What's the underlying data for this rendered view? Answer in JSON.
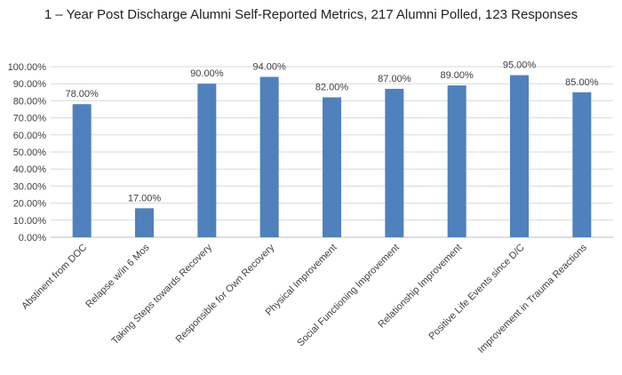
{
  "chart_data": {
    "type": "bar",
    "title": "1 – Year Post Discharge Alumni Self-Reported Metrics, 217 Alumni Polled, 123 Responses",
    "xlabel": "",
    "ylabel": "",
    "categories": [
      "Abstinent from DOC",
      "Relapse w/in 6 Mos",
      "Taking Steps towards Recovery",
      "Responsible for Own Recovery",
      "Physical Improvement",
      "Social Functioning Improvement",
      "Relationship Improvement",
      "Positive Life Events since D/C",
      "Improvement in Trauma Reactions"
    ],
    "values": [
      78,
      17,
      90,
      94,
      82,
      87,
      89,
      95,
      85
    ],
    "data_labels": [
      "78.00%",
      "17.00%",
      "90.00%",
      "94.00%",
      "82.00%",
      "87.00%",
      "89.00%",
      "95.00%",
      "85.00%"
    ],
    "y_ticks": [
      0,
      10,
      20,
      30,
      40,
      50,
      60,
      70,
      80,
      90,
      100
    ],
    "y_tick_labels": [
      "0.00%",
      "10.00%",
      "20.00%",
      "30.00%",
      "40.00%",
      "50.00%",
      "60.00%",
      "70.00%",
      "80.00%",
      "90.00%",
      "100.00%"
    ],
    "ylim": [
      0,
      100
    ],
    "grid": true,
    "bar_color": "#4f81bd",
    "grid_color": "#d9d9d9"
  }
}
